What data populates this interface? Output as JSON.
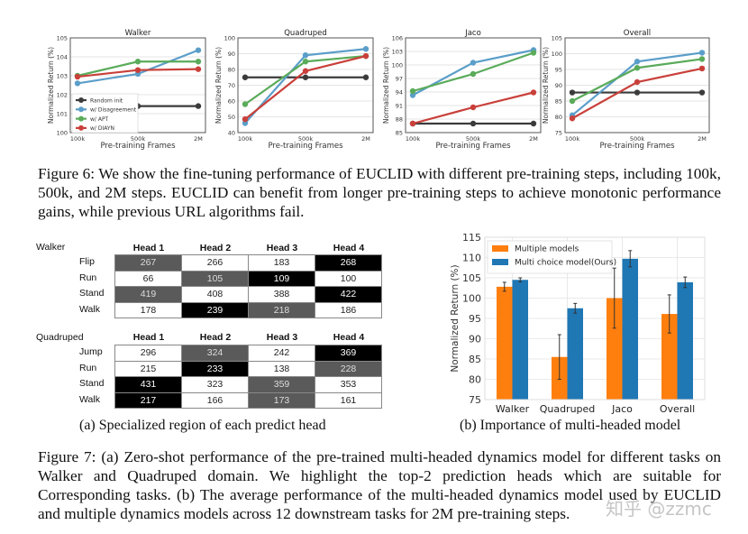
{
  "figure6": {
    "caption": "Figure 6: We show the fine-tuning performance of EUCLID with different pre-training steps, including 100k, 500k, and 2M steps. EUCLID can benefit from longer pre-training steps to achieve monotonic performance gains, while previous URL algorithms fail."
  },
  "chart_data": [
    {
      "type": "line",
      "title": "Walker",
      "xlabel": "Pre-training Frames",
      "ylabel": "Normalized Return (%)",
      "categories": [
        "100k",
        "500k",
        "2M"
      ],
      "ylim": [
        100,
        105
      ],
      "yticks": [
        100,
        101,
        102,
        103,
        104,
        105
      ],
      "grid": true,
      "legend": "bottom-left",
      "series": [
        {
          "name": "Random init",
          "color": "#3b3b3b",
          "values": [
            101.4,
            101.4,
            101.4
          ]
        },
        {
          "name": "w/ Disagreement",
          "color": "#5b9ec9",
          "values": [
            102.6,
            103.1,
            104.35
          ]
        },
        {
          "name": "w/ APT",
          "color": "#5aab5a",
          "values": [
            103.0,
            103.75,
            103.75
          ]
        },
        {
          "name": "w/ DIAYN",
          "color": "#c9403a",
          "values": [
            102.95,
            103.3,
            103.35
          ]
        }
      ]
    },
    {
      "type": "line",
      "title": "Quadruped",
      "xlabel": "Pre-training Frames",
      "ylabel": "Normalized Return (%)",
      "categories": [
        "100k",
        "500k",
        "2M"
      ],
      "ylim": [
        40,
        100
      ],
      "yticks": [
        40,
        50,
        60,
        70,
        80,
        90,
        100
      ],
      "grid": true,
      "series": [
        {
          "name": "Random init",
          "color": "#3b3b3b",
          "values": [
            75,
            75,
            75
          ]
        },
        {
          "name": "w/ Disagreement",
          "color": "#5b9ec9",
          "values": [
            46,
            89,
            93
          ]
        },
        {
          "name": "w/ APT",
          "color": "#5aab5a",
          "values": [
            58,
            85,
            88.5
          ]
        },
        {
          "name": "w/ DIAYN",
          "color": "#c9403a",
          "values": [
            48.5,
            79,
            88.5
          ]
        }
      ]
    },
    {
      "type": "line",
      "title": "Jaco",
      "xlabel": "Pre-training Frames",
      "ylabel": "Normalized Return (%)",
      "categories": [
        "100k",
        "500k",
        "2M"
      ],
      "ylim": [
        85,
        106
      ],
      "yticks": [
        85,
        88,
        91,
        94,
        97,
        100,
        103,
        106
      ],
      "grid": true,
      "series": [
        {
          "name": "Random init",
          "color": "#3b3b3b",
          "values": [
            87,
            87,
            87
          ]
        },
        {
          "name": "w/ Disagreement",
          "color": "#5b9ec9",
          "values": [
            93.3,
            100.5,
            103.3
          ]
        },
        {
          "name": "w/ APT",
          "color": "#5aab5a",
          "values": [
            94.2,
            98,
            102.7
          ]
        },
        {
          "name": "w/ DIAYN",
          "color": "#c9403a",
          "values": [
            87,
            90.6,
            93.9
          ]
        }
      ]
    },
    {
      "type": "line",
      "title": "Overall",
      "xlabel": "Pre-training Frames",
      "ylabel": "Normalized Return (%)",
      "categories": [
        "100k",
        "500k",
        "2M"
      ],
      "ylim": [
        75,
        105
      ],
      "yticks": [
        75,
        80,
        85,
        90,
        95,
        100,
        105
      ],
      "grid": true,
      "series": [
        {
          "name": "Random init",
          "color": "#3b3b3b",
          "values": [
            87.7,
            87.7,
            87.7
          ]
        },
        {
          "name": "w/ Disagreement",
          "color": "#5b9ec9",
          "values": [
            80.5,
            97.5,
            100.3
          ]
        },
        {
          "name": "w/ APT",
          "color": "#5aab5a",
          "values": [
            85,
            95.5,
            98.3
          ]
        },
        {
          "name": "w/ DIAYN",
          "color": "#c9403a",
          "values": [
            79.5,
            91,
            95.3
          ]
        }
      ]
    },
    {
      "type": "bar",
      "title": "",
      "xlabel": "",
      "ylabel": "Normalized Return (%)",
      "categories": [
        "Walker",
        "Quadruped",
        "Jaco",
        "Overall"
      ],
      "ylim": [
        75,
        115
      ],
      "yticks": [
        75,
        80,
        85,
        90,
        95,
        100,
        105,
        110,
        115
      ],
      "grid": true,
      "legend": "top-left",
      "series": [
        {
          "name": "Multiple models",
          "color": "#ff7f0e",
          "values": [
            102.8,
            85.5,
            100.0,
            96.1
          ],
          "errors": [
            1.1,
            5.5,
            7.4,
            4.7
          ]
        },
        {
          "name": "Multi choice model(Ours)",
          "color": "#1f77b4",
          "values": [
            104.5,
            97.5,
            109.7,
            103.9
          ],
          "errors": [
            0.5,
            1.2,
            2.0,
            1.3
          ]
        }
      ]
    }
  ],
  "table": {
    "heads": [
      "Head 1",
      "Head 2",
      "Head 3",
      "Head 4"
    ],
    "groups": [
      {
        "domain": "Walker",
        "rows": [
          {
            "task": "Flip",
            "values": [
              "267",
              "266",
              "183",
              "268"
            ],
            "shade": [
              "gray",
              "none",
              "none",
              "black"
            ]
          },
          {
            "task": "Run",
            "values": [
              "66",
              "105",
              "109",
              "100"
            ],
            "shade": [
              "none",
              "gray",
              "black",
              "none"
            ]
          },
          {
            "task": "Stand",
            "values": [
              "419",
              "408",
              "388",
              "422"
            ],
            "shade": [
              "gray",
              "none",
              "none",
              "black"
            ]
          },
          {
            "task": "Walk",
            "values": [
              "178",
              "239",
              "218",
              "186"
            ],
            "shade": [
              "none",
              "black",
              "gray",
              "none"
            ]
          }
        ]
      },
      {
        "domain": "Quadruped",
        "rows": [
          {
            "task": "Jump",
            "values": [
              "296",
              "324",
              "242",
              "369"
            ],
            "shade": [
              "none",
              "gray",
              "none",
              "black"
            ]
          },
          {
            "task": "Run",
            "values": [
              "215",
              "233",
              "138",
              "228"
            ],
            "shade": [
              "none",
              "black",
              "none",
              "gray"
            ]
          },
          {
            "task": "Stand",
            "values": [
              "431",
              "323",
              "359",
              "353"
            ],
            "shade": [
              "black",
              "none",
              "gray",
              "none"
            ]
          },
          {
            "task": "Walk",
            "values": [
              "217",
              "166",
              "173",
              "161"
            ],
            "shade": [
              "black",
              "none",
              "gray",
              "none"
            ]
          }
        ]
      }
    ],
    "caption": "(a) Specialized region of each predict head"
  },
  "bar_caption": "(b) Importance of multi-headed model",
  "figure7": {
    "caption": "Figure 7: (a) Zero-shot performance of the pre-trained multi-headed dynamics model for different tasks on Walker and Quadruped domain. We highlight the top-2 prediction heads which are suitable for Corresponding tasks. (b) The average performance of the multi-headed dynamics model used by EUCLID and multiple dynamics models across 12 downstream tasks for 2M pre-training steps."
  },
  "watermark": "知乎 @zzmc",
  "shade_colors": {
    "gray": "#5a5a5a",
    "black": "#000000"
  }
}
